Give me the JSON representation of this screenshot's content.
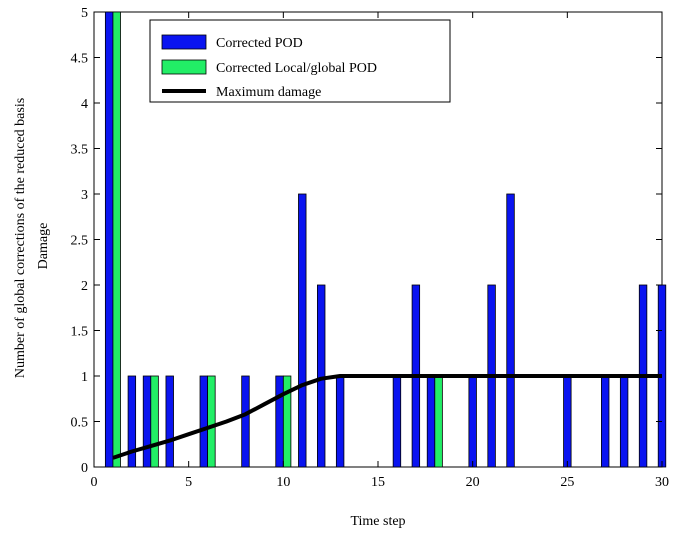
{
  "chart_data": {
    "type": "bar",
    "xlabel": "Time step",
    "ylabel": "Number of global corrections of the reduced basis",
    "ylabel2": "Damage",
    "xlim": [
      0,
      30
    ],
    "ylim": [
      0,
      5
    ],
    "xticks": [
      0,
      5,
      10,
      15,
      20,
      25,
      30
    ],
    "yticks": [
      0,
      0.5,
      1,
      1.5,
      2,
      2.5,
      3,
      3.5,
      4,
      4.5,
      5
    ],
    "legend_position": "top",
    "series": [
      {
        "name": "Corrected POD",
        "kind": "bar",
        "color": "#0a14f0",
        "points": [
          [
            1,
            5
          ],
          [
            2,
            1
          ],
          [
            3,
            1
          ],
          [
            4,
            1
          ],
          [
            6,
            1
          ],
          [
            8,
            1
          ],
          [
            10,
            1
          ],
          [
            11,
            3
          ],
          [
            12,
            2
          ],
          [
            13,
            1
          ],
          [
            16,
            1
          ],
          [
            17,
            2
          ],
          [
            18,
            1
          ],
          [
            20,
            1
          ],
          [
            21,
            2
          ],
          [
            22,
            3
          ],
          [
            25,
            1
          ],
          [
            27,
            1
          ],
          [
            28,
            1
          ],
          [
            29,
            2
          ],
          [
            30,
            2
          ]
        ]
      },
      {
        "name": "Corrected Local/global POD",
        "kind": "bar",
        "color": "#22ee66",
        "points": [
          [
            1,
            5
          ],
          [
            3,
            1
          ],
          [
            6,
            1
          ],
          [
            10,
            1
          ],
          [
            18,
            1
          ]
        ]
      },
      {
        "name": "Maximum damage",
        "kind": "line",
        "color": "#000000",
        "points": [
          [
            1,
            0.1
          ],
          [
            2,
            0.17
          ],
          [
            3,
            0.23
          ],
          [
            4,
            0.29
          ],
          [
            5,
            0.36
          ],
          [
            6,
            0.43
          ],
          [
            7,
            0.5
          ],
          [
            8,
            0.58
          ],
          [
            9,
            0.69
          ],
          [
            10,
            0.8
          ],
          [
            11,
            0.9
          ],
          [
            12,
            0.97
          ],
          [
            13,
            1
          ],
          [
            14,
            1
          ],
          [
            15,
            1
          ],
          [
            16,
            1
          ],
          [
            17,
            1
          ],
          [
            18,
            1
          ],
          [
            19,
            1
          ],
          [
            20,
            1
          ],
          [
            21,
            1
          ],
          [
            22,
            1
          ],
          [
            23,
            1
          ],
          [
            24,
            1
          ],
          [
            25,
            1
          ],
          [
            26,
            1
          ],
          [
            27,
            1
          ],
          [
            28,
            1
          ],
          [
            29,
            1
          ],
          [
            30,
            1
          ]
        ]
      }
    ]
  }
}
